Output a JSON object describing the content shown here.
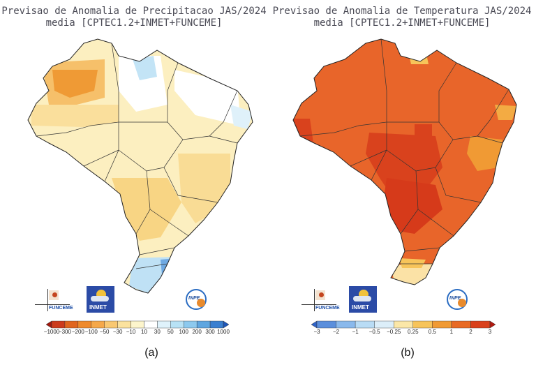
{
  "panels": [
    {
      "title_line1": "Previsao de Anomalia de Precipitacao JAS/2024",
      "title_line2": "media [CPTEC1.2+INMET+FUNCEME]",
      "caption": "(a)",
      "colorbar": {
        "colors": [
          "#a11a10",
          "#cc3b1d",
          "#e0661f",
          "#ef8a2c",
          "#f5a84a",
          "#f9c872",
          "#fbe29e",
          "#fdf5cc",
          "#ffffff",
          "#dff2fb",
          "#b8e2f5",
          "#8dc9ee",
          "#5fa6e0",
          "#3a7fd0",
          "#1f57b8"
        ],
        "ticks": [
          "−1000",
          "−300",
          "−200",
          "−100",
          "−50",
          "−30",
          "−10",
          "10",
          "30",
          "50",
          "100",
          "200",
          "300",
          "1000"
        ]
      },
      "logos": {
        "funceme": "FUNCEME",
        "inmet": "INMET",
        "inpe": "INPE"
      }
    },
    {
      "title_line1": "Previsao de Anomalia de Temperatura JAS/2024",
      "title_line2": "media [CPTEC1.2+INMET+FUNCEME]",
      "caption": "(b)",
      "colorbar": {
        "colors": [
          "#2f64c9",
          "#5b8fdc",
          "#8ab9ec",
          "#b9dcf5",
          "#dceef9",
          "#fbe7a8",
          "#f7c45a",
          "#f09a34",
          "#e86a24",
          "#d9411c",
          "#b3190f"
        ],
        "ticks": [
          "−3",
          "−2",
          "−1",
          "−0.5",
          "−0.25",
          "0.25",
          "0.5",
          "1",
          "2",
          "3"
        ]
      },
      "logos": {
        "funceme": "FUNCEME",
        "inmet": "INMET",
        "inpe": "INPE"
      }
    }
  ]
}
